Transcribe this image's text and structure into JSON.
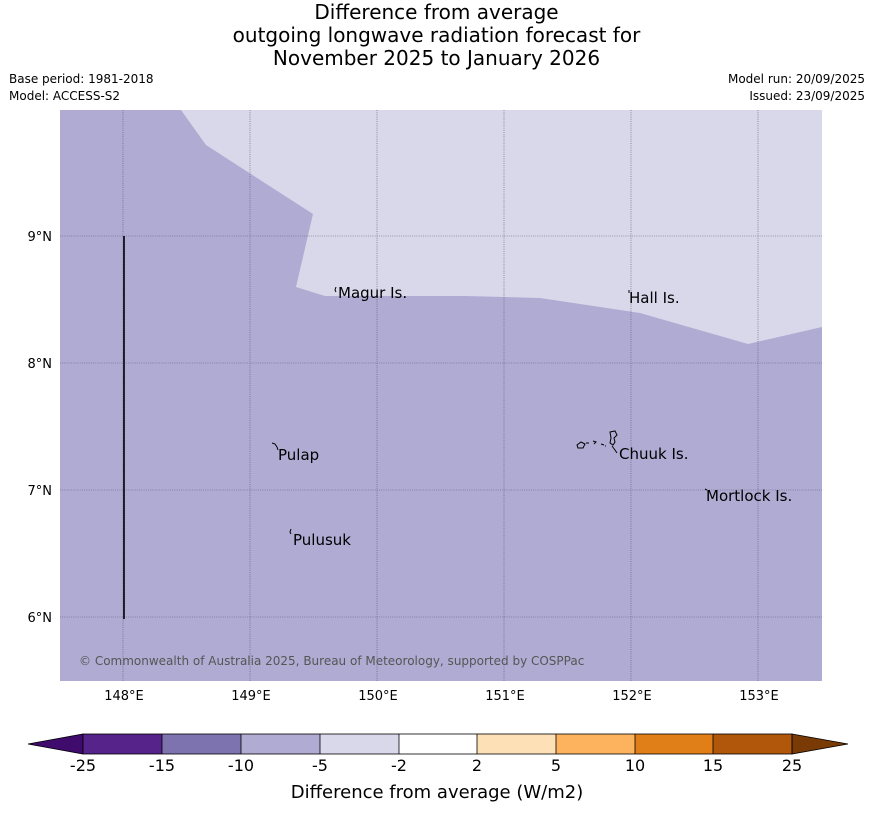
{
  "title": {
    "line1": "Difference from average",
    "line2": "outgoing longwave radiation forecast for",
    "line3": "November 2025 to January 2026"
  },
  "meta": {
    "base_period": "Base period: 1981-2018",
    "model": "Model: ACCESS-S2",
    "model_run": "Model run: 20/09/2025",
    "issued": "Issued: 23/09/2025"
  },
  "map": {
    "longitude_labels": [
      "148°E",
      "149°E",
      "150°E",
      "151°E",
      "152°E",
      "153°E"
    ],
    "latitude_labels": [
      "9°N",
      "8°N",
      "7°N",
      "6°N"
    ],
    "places": {
      "magur": "Magur Is.",
      "hall": "Hall Is.",
      "pulap": "Pulap",
      "chuuk": "Chuuk Is.",
      "mortlock": "Mortlock Is.",
      "pulusuk": "Pulusuk"
    },
    "copyright": "© Commonwealth of Australia 2025, Bureau of Meteorology, supported by COSPPac",
    "colors": {
      "fill_minus10_to_minus5": "#b0abd2",
      "fill_minus5_to_minus2": "#d8d8ea",
      "grid": "#555577"
    }
  },
  "colorbar": {
    "label": "Difference from average (W/m2)",
    "ticks": [
      "-25",
      "-15",
      "-10",
      "-5",
      "-2",
      "2",
      "5",
      "10",
      "15",
      "25"
    ],
    "colors": {
      "below_min": "#3f0b6c",
      "bin1": "#55238a",
      "bin2": "#7d73ae",
      "bin3": "#b0abd2",
      "bin4": "#d8d8ea",
      "bin5": "#ffffff",
      "bin6": "#fde0b5",
      "bin7": "#fdb35e",
      "bin8": "#e07f17",
      "bin9": "#b0570c",
      "above_max": "#7a3a06"
    }
  }
}
